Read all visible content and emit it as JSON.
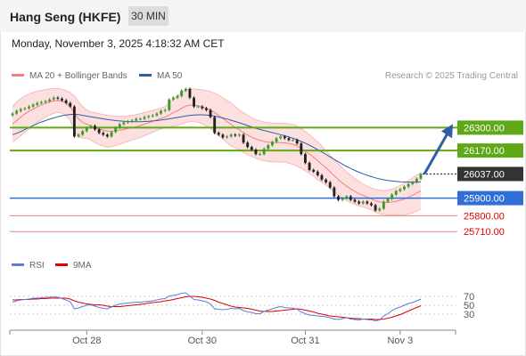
{
  "header": {
    "title": "Hang Seng (HKFE)",
    "timeframe": "30 MIN",
    "datetime": "Monday, November 3, 2025 4:18:32 AM CET"
  },
  "credit": "Research © 2025 Trading Central",
  "colors": {
    "bollinger": "#f08080",
    "bands_fill": "#fbd9d9",
    "ma50": "#2e5ea8",
    "resistance": "#5fa818",
    "support": "#2f6fd6",
    "minor_support": "#f08080",
    "current": "#333333",
    "rsi": "#5b7fd6",
    "rsi_ma": "#e00000",
    "arrow": "#2e5ea8"
  },
  "chart_data": [
    {
      "type": "candlestick",
      "title": "Hang Seng (HKFE)",
      "interval": "30 MIN",
      "y_range": [
        25620,
        26570
      ],
      "x_ticks": [
        "Oct 28",
        "Oct 30",
        "Oct 31",
        "Nov 3"
      ],
      "legend": [
        {
          "name": "MA 20 + Bollinger Bands",
          "color": "#f08080"
        },
        {
          "name": "MA 50",
          "color": "#2e5ea8"
        }
      ],
      "price_levels": [
        {
          "label": "26300.00",
          "value": 26300,
          "kind": "resistance"
        },
        {
          "label": "26170.00",
          "value": 26170,
          "kind": "resistance"
        },
        {
          "label": "26037.00",
          "value": 26037,
          "kind": "current"
        },
        {
          "label": "25900.00",
          "value": 25900,
          "kind": "support"
        },
        {
          "label": "25800.00",
          "value": 25800,
          "kind": "minor_support"
        },
        {
          "label": "25710.00",
          "value": 25710,
          "kind": "minor_support"
        }
      ],
      "close": [
        26380,
        26395,
        26405,
        26410,
        26420,
        26430,
        26440,
        26445,
        26450,
        26460,
        26470,
        26465,
        26455,
        26440,
        26420,
        26250,
        26260,
        26280,
        26300,
        26310,
        26290,
        26270,
        26260,
        26250,
        26275,
        26300,
        26320,
        26330,
        26335,
        26340,
        26350,
        26350,
        26360,
        26365,
        26370,
        26380,
        26395,
        26400,
        26460,
        26470,
        26480,
        26510,
        26520,
        26470,
        26420,
        26420,
        26410,
        26400,
        26360,
        26270,
        26260,
        26245,
        26250,
        26260,
        26255,
        26260,
        26215,
        26190,
        26175,
        26150,
        26150,
        26180,
        26200,
        26220,
        26240,
        26250,
        26240,
        26230,
        26230,
        26210,
        26150,
        26100,
        26060,
        26050,
        26030,
        26005,
        25990,
        25960,
        25910,
        25890,
        25900,
        25910,
        25890,
        25880,
        25870,
        25880,
        25870,
        25860,
        25830,
        25840,
        25880,
        25895,
        25920,
        25940,
        25950,
        25965,
        25980,
        25990,
        26010,
        26037
      ],
      "ma20": [
        26320,
        26340,
        26360,
        26378,
        26392,
        26405,
        26418,
        26428,
        26438,
        26446,
        26452,
        26454,
        26450,
        26440,
        26420,
        26380,
        26350,
        26330,
        26320,
        26310,
        26300,
        26292,
        26285,
        26280,
        26280,
        26282,
        26285,
        26290,
        26295,
        26300,
        26305,
        26312,
        26320,
        26328,
        26336,
        26344,
        26352,
        26360,
        26372,
        26385,
        26396,
        26410,
        26422,
        26428,
        26428,
        26424,
        26418,
        26410,
        26400,
        26385,
        26370,
        26352,
        26335,
        26318,
        26302,
        26288,
        26272,
        26258,
        26246,
        26236,
        26228,
        26222,
        26218,
        26216,
        26215,
        26215,
        26214,
        26210,
        26205,
        26196,
        26182,
        26166,
        26150,
        26132,
        26112,
        26092,
        26072,
        26050,
        26028,
        26005,
        25985,
        25968,
        25952,
        25938,
        25925,
        25915,
        25905,
        25895,
        25885,
        25878,
        25875,
        25875,
        25878,
        25882,
        25888,
        25895,
        25905,
        25915,
        25928,
        25942
      ],
      "bb_upper": [
        26420,
        26445,
        26465,
        26480,
        26492,
        26500,
        26507,
        26512,
        26516,
        26520,
        26522,
        26522,
        26518,
        26510,
        26500,
        26480,
        26450,
        26420,
        26400,
        26390,
        26385,
        26380,
        26375,
        26370,
        26368,
        26366,
        26365,
        26366,
        26368,
        26370,
        26374,
        26380,
        26386,
        26392,
        26398,
        26404,
        26412,
        26420,
        26440,
        26460,
        26480,
        26500,
        26515,
        26520,
        26520,
        26518,
        26515,
        26510,
        26505,
        26495,
        26485,
        26470,
        26455,
        26440,
        26420,
        26400,
        26385,
        26370,
        26355,
        26345,
        26338,
        26332,
        26328,
        26326,
        26325,
        26325,
        26325,
        26322,
        26318,
        26310,
        26295,
        26278,
        26260,
        26240,
        26220,
        26195,
        26170,
        26145,
        26120,
        26095,
        26070,
        26050,
        26030,
        26012,
        25995,
        25980,
        25968,
        25958,
        25950,
        25945,
        25943,
        25945,
        25950,
        25960,
        25972,
        25985,
        26000,
        26015,
        26030,
        26045
      ],
      "bb_lower": [
        26220,
        26235,
        26255,
        26275,
        26292,
        26310,
        26330,
        26344,
        26360,
        26372,
        26382,
        26386,
        26382,
        26370,
        26340,
        26280,
        26250,
        26240,
        26240,
        26230,
        26215,
        26204,
        26195,
        26190,
        26192,
        26198,
        26205,
        26214,
        26222,
        26230,
        26236,
        26244,
        26254,
        26264,
        26274,
        26284,
        26292,
        26300,
        26304,
        26310,
        26312,
        26320,
        26329,
        26336,
        26336,
        26330,
        26321,
        26310,
        26295,
        26275,
        26255,
        26234,
        26215,
        26196,
        26184,
        26176,
        26159,
        26146,
        26137,
        26127,
        26118,
        26112,
        26108,
        26106,
        26105,
        26105,
        26103,
        26098,
        26092,
        26082,
        26069,
        26054,
        26040,
        26024,
        26004,
        25989,
        25974,
        25955,
        25936,
        25915,
        25900,
        25886,
        25874,
        25864,
        25855,
        25850,
        25842,
        25832,
        25820,
        25811,
        25807,
        25805,
        25806,
        25804,
        25804,
        25805,
        25810,
        25815,
        25826,
        25839
      ],
      "ma50": [
        26260,
        26268,
        26278,
        26290,
        26300,
        26312,
        26322,
        26332,
        26340,
        26348,
        26355,
        26362,
        26368,
        26372,
        26375,
        26376,
        26374,
        26370,
        26366,
        26362,
        26358,
        26354,
        26350,
        26346,
        26343,
        26340,
        26338,
        26336,
        26335,
        26334,
        26334,
        26334,
        26335,
        26336,
        26338,
        26340,
        26343,
        26346,
        26350,
        26354,
        26358,
        26362,
        26366,
        26370,
        26372,
        26373,
        26373,
        26372,
        26370,
        26366,
        26361,
        26355,
        26349,
        26342,
        26335,
        26328,
        26320,
        26312,
        26304,
        26296,
        26290,
        26284,
        26278,
        26272,
        26266,
        26260,
        26254,
        26247,
        26240,
        26232,
        26222,
        26212,
        26200,
        26188,
        26175,
        26162,
        26148,
        26134,
        26120,
        26106,
        26093,
        26080,
        26068,
        26057,
        26047,
        26038,
        26030,
        26022,
        26015,
        26009,
        26004,
        26000,
        25997,
        25995,
        25993,
        25992,
        25991,
        25991,
        25991,
        25992
      ]
    },
    {
      "type": "line",
      "title": "RSI",
      "y_range": [
        0,
        100
      ],
      "y_ticks": [
        70,
        50,
        30
      ],
      "legend": [
        {
          "name": "RSI",
          "color": "#5b7fd6"
        },
        {
          "name": "9MA",
          "color": "#e00000"
        }
      ],
      "series": [
        {
          "name": "RSI",
          "values": [
            57,
            60,
            62,
            63,
            64,
            66,
            66,
            67,
            68,
            68,
            69,
            68,
            65,
            62,
            58,
            42,
            44,
            47,
            50,
            51,
            48,
            45,
            43,
            42,
            46,
            50,
            53,
            54,
            55,
            56,
            57,
            57,
            58,
            59,
            60,
            62,
            64,
            65,
            71,
            72,
            74,
            77,
            78,
            70,
            63,
            62,
            60,
            58,
            53,
            42,
            41,
            40,
            41,
            43,
            42,
            43,
            38,
            35,
            34,
            31,
            31,
            36,
            39,
            42,
            45,
            47,
            45,
            44,
            44,
            41,
            35,
            31,
            28,
            27,
            26,
            25,
            24,
            22,
            19,
            18,
            20,
            22,
            19,
            18,
            17,
            19,
            18,
            17,
            15,
            17,
            26,
            31,
            38,
            43,
            46,
            50,
            54,
            56,
            60,
            64
          ]
        },
        {
          "name": "9MA",
          "values": [
            62,
            62,
            63,
            63,
            63,
            64,
            64,
            65,
            65,
            66,
            66,
            66,
            66,
            66,
            64,
            60,
            57,
            55,
            53,
            52,
            51,
            51,
            50,
            48,
            47,
            47,
            47,
            48,
            49,
            50,
            51,
            52,
            53,
            55,
            56,
            57,
            58,
            60,
            61,
            63,
            65,
            67,
            69,
            70,
            70,
            69,
            68,
            66,
            64,
            61,
            57,
            54,
            51,
            48,
            46,
            45,
            44,
            43,
            41,
            39,
            37,
            36,
            36,
            36,
            37,
            38,
            39,
            40,
            41,
            42,
            41,
            39,
            37,
            35,
            32,
            30,
            28,
            26,
            25,
            24,
            23,
            22,
            21,
            20,
            20,
            19,
            19,
            19,
            18,
            18,
            19,
            21,
            23,
            26,
            29,
            33,
            37,
            41,
            45,
            49
          ]
        }
      ]
    }
  ]
}
